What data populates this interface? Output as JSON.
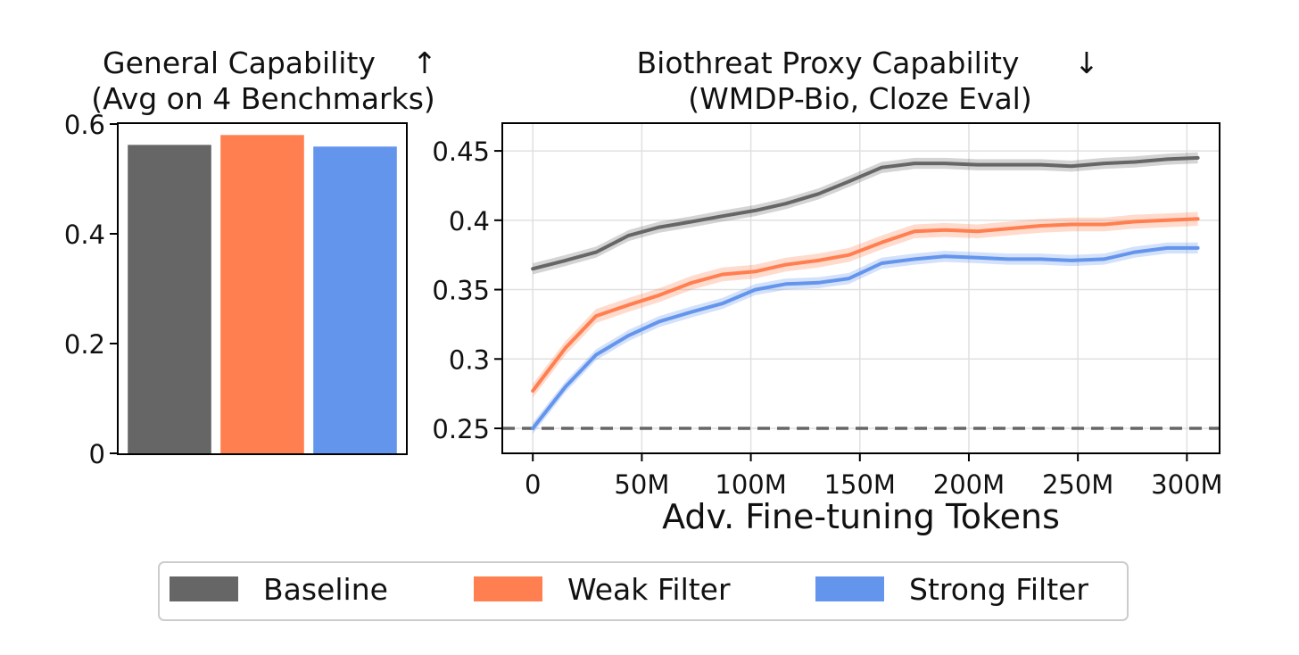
{
  "colors": {
    "baseline": "#666666",
    "weak": "#ff7f50",
    "strong": "#6495ed",
    "chance": "#666666",
    "grid": "#e0e0e0"
  },
  "chart_data": [
    {
      "type": "bar",
      "title_line1": "General Capability",
      "title_arrow": "↑",
      "title_line2": "(Avg on 4 Benchmarks)",
      "categories": [
        "Baseline",
        "Weak Filter",
        "Strong Filter"
      ],
      "values": [
        0.562,
        0.58,
        0.559
      ],
      "ylim": [
        0,
        0.6
      ],
      "yticks": [
        {
          "value": 0,
          "label": "0"
        },
        {
          "value": 0.2,
          "label": "0.2"
        },
        {
          "value": 0.4,
          "label": "0.4"
        },
        {
          "value": 0.6,
          "label": "0.6"
        }
      ],
      "grid": false
    },
    {
      "type": "line",
      "title_line1": "Biothreat Proxy Capability",
      "title_arrow": "↓",
      "title_line2": "(WMDP-Bio, Cloze Eval)",
      "xlabel": "Adv. Fine-tuning Tokens",
      "xlim": [
        -14,
        315
      ],
      "ylim": [
        0.232,
        0.47
      ],
      "xticks": [
        {
          "value": 0,
          "label": "0"
        },
        {
          "value": 50,
          "label": "50M"
        },
        {
          "value": 100,
          "label": "100M"
        },
        {
          "value": 150,
          "label": "150M"
        },
        {
          "value": 200,
          "label": "200M"
        },
        {
          "value": 250,
          "label": "250M"
        },
        {
          "value": 300,
          "label": "300M"
        }
      ],
      "yticks": [
        {
          "value": 0.25,
          "label": "0.25"
        },
        {
          "value": 0.3,
          "label": "0.3"
        },
        {
          "value": 0.35,
          "label": "0.35"
        },
        {
          "value": 0.4,
          "label": "0.4"
        },
        {
          "value": 0.45,
          "label": "0.45"
        }
      ],
      "chance_level": 0.25,
      "grid": true,
      "x": [
        0,
        15,
        29,
        44,
        58,
        73,
        87,
        102,
        116,
        131,
        145,
        160,
        175,
        189,
        204,
        218,
        233,
        247,
        262,
        276,
        291,
        305
      ],
      "series": [
        {
          "name": "Baseline",
          "key": "baseline",
          "band": 0.004,
          "values": [
            0.365,
            0.371,
            0.377,
            0.389,
            0.395,
            0.399,
            0.403,
            0.407,
            0.412,
            0.419,
            0.428,
            0.438,
            0.441,
            0.441,
            0.44,
            0.44,
            0.44,
            0.439,
            0.441,
            0.442,
            0.444,
            0.445
          ]
        },
        {
          "name": "Weak Filter",
          "key": "weak",
          "band": 0.005,
          "values": [
            0.277,
            0.308,
            0.331,
            0.339,
            0.346,
            0.355,
            0.361,
            0.363,
            0.368,
            0.371,
            0.375,
            0.384,
            0.392,
            0.393,
            0.392,
            0.394,
            0.396,
            0.397,
            0.397,
            0.399,
            0.4,
            0.401
          ]
        },
        {
          "name": "Strong Filter",
          "key": "strong",
          "band": 0.004,
          "values": [
            0.25,
            0.28,
            0.303,
            0.317,
            0.327,
            0.334,
            0.34,
            0.35,
            0.354,
            0.355,
            0.358,
            0.369,
            0.372,
            0.374,
            0.373,
            0.372,
            0.372,
            0.371,
            0.372,
            0.377,
            0.38,
            0.38
          ]
        }
      ]
    }
  ],
  "legend": {
    "items": [
      {
        "label": "Baseline",
        "key": "baseline"
      },
      {
        "label": "Weak Filter",
        "key": "weak"
      },
      {
        "label": "Strong Filter",
        "key": "strong"
      }
    ]
  }
}
